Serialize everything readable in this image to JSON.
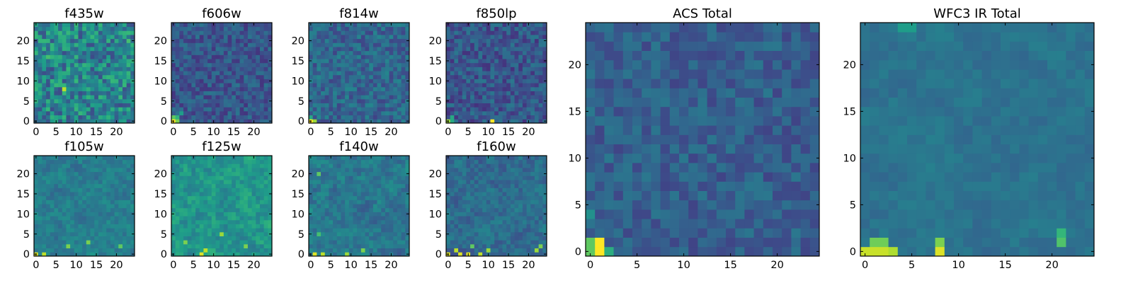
{
  "chart_data": [
    {
      "type": "heatmap",
      "title": "f435w",
      "size": 25,
      "xticks": [
        0,
        5,
        10,
        15,
        20
      ],
      "yticks": [
        0,
        5,
        10,
        15,
        20
      ],
      "colormap": "viridis",
      "seed": 11,
      "base": 0.45,
      "amp": 0.22,
      "bright": [
        [
          7,
          8,
          0.9
        ],
        [
          3,
          16,
          0.7
        ],
        [
          23,
          20,
          0.7
        ],
        [
          12,
          2,
          0.6
        ]
      ]
    },
    {
      "type": "heatmap",
      "title": "f606w",
      "size": 25,
      "xticks": [
        0,
        5,
        10,
        15,
        20
      ],
      "yticks": [
        0,
        5,
        10,
        15,
        20
      ],
      "colormap": "viridis",
      "seed": 23,
      "base": 0.27,
      "amp": 0.12,
      "bright": [
        [
          0,
          0,
          1.0
        ],
        [
          1,
          0,
          0.8
        ],
        [
          0,
          1,
          0.75
        ],
        [
          1,
          1,
          0.65
        ],
        [
          2,
          2,
          0.55
        ]
      ]
    },
    {
      "type": "heatmap",
      "title": "f814w",
      "size": 25,
      "xticks": [
        0,
        5,
        10,
        15,
        20
      ],
      "yticks": [
        0,
        5,
        10,
        15,
        20
      ],
      "colormap": "viridis",
      "seed": 37,
      "base": 0.33,
      "amp": 0.13,
      "bright": [
        [
          0,
          0,
          1.0
        ],
        [
          1,
          0,
          0.85
        ],
        [
          0,
          1,
          0.6
        ]
      ]
    },
    {
      "type": "heatmap",
      "title": "f850lp",
      "size": 25,
      "xticks": [
        0,
        5,
        10,
        15,
        20
      ],
      "yticks": [
        0,
        5,
        10,
        15,
        20
      ],
      "colormap": "viridis",
      "seed": 41,
      "base": 0.27,
      "amp": 0.13,
      "bright": [
        [
          0,
          0,
          0.85
        ],
        [
          1,
          0,
          0.6
        ],
        [
          11,
          0,
          1.0
        ],
        [
          1,
          1,
          0.6
        ]
      ]
    },
    {
      "type": "heatmap",
      "title": "ACS Total",
      "size": 25,
      "xticks": [
        0,
        5,
        10,
        15,
        20
      ],
      "yticks": [
        0,
        5,
        10,
        15,
        20
      ],
      "colormap": "viridis",
      "seed": 53,
      "base": 0.3,
      "amp": 0.1,
      "bright": [
        [
          1,
          0,
          1.0
        ],
        [
          1,
          1,
          1.0
        ],
        [
          0,
          0,
          0.75
        ],
        [
          0,
          1,
          0.75
        ],
        [
          2,
          0,
          0.62
        ],
        [
          0,
          4,
          0.5
        ]
      ]
    },
    {
      "type": "heatmap",
      "title": "f105w",
      "size": 25,
      "xticks": [
        0,
        5,
        10,
        15,
        20
      ],
      "yticks": [
        0,
        5,
        10,
        15,
        20
      ],
      "colormap": "viridis",
      "seed": 61,
      "base": 0.42,
      "amp": 0.14,
      "smooth": true,
      "bright": [
        [
          0,
          0,
          0.95
        ],
        [
          2,
          0,
          0.9
        ],
        [
          8,
          2,
          0.8
        ],
        [
          13,
          3,
          0.8
        ],
        [
          21,
          2,
          0.75
        ]
      ]
    },
    {
      "type": "heatmap",
      "title": "f125w",
      "size": 25,
      "xticks": [
        0,
        5,
        10,
        15,
        20
      ],
      "yticks": [
        0,
        5,
        10,
        15,
        20
      ],
      "colormap": "viridis",
      "seed": 73,
      "base": 0.52,
      "amp": 0.17,
      "smooth": true,
      "bright": [
        [
          7,
          0,
          0.95
        ],
        [
          8,
          1,
          0.9
        ],
        [
          12,
          5,
          0.85
        ],
        [
          3,
          3,
          0.8
        ],
        [
          18,
          2,
          0.8
        ]
      ]
    },
    {
      "type": "heatmap",
      "title": "f140w",
      "size": 25,
      "xticks": [
        0,
        5,
        10,
        15,
        20
      ],
      "yticks": [
        0,
        5,
        10,
        15,
        20
      ],
      "colormap": "viridis",
      "seed": 83,
      "base": 0.4,
      "amp": 0.16,
      "smooth": true,
      "bright": [
        [
          1,
          0,
          0.95
        ],
        [
          3,
          0,
          0.9
        ],
        [
          9,
          0,
          0.85
        ],
        [
          13,
          1,
          0.8
        ],
        [
          2,
          20,
          0.75
        ],
        [
          2,
          5,
          0.7
        ]
      ]
    },
    {
      "type": "heatmap",
      "title": "f160w",
      "size": 25,
      "xticks": [
        0,
        5,
        10,
        15,
        20
      ],
      "yticks": [
        0,
        5,
        10,
        15,
        20
      ],
      "colormap": "viridis",
      "seed": 97,
      "base": 0.35,
      "amp": 0.15,
      "smooth": true,
      "bright": [
        [
          0,
          0,
          0.95
        ],
        [
          3,
          0,
          0.95
        ],
        [
          5,
          0,
          0.95
        ],
        [
          8,
          0,
          0.9
        ],
        [
          10,
          1,
          0.85
        ],
        [
          2,
          1,
          0.9
        ],
        [
          22,
          1,
          0.85
        ],
        [
          23,
          2,
          0.8
        ],
        [
          6,
          2,
          0.75
        ]
      ]
    },
    {
      "type": "heatmap",
      "title": "WFC3 IR Total",
      "size": 25,
      "xticks": [
        0,
        5,
        10,
        15,
        20
      ],
      "yticks": [
        0,
        5,
        10,
        15,
        20
      ],
      "colormap": "viridis",
      "seed": 101,
      "base": 0.38,
      "amp": 0.08,
      "smooth": true,
      "bright": [
        [
          0,
          0,
          0.92
        ],
        [
          1,
          0,
          0.92
        ],
        [
          2,
          0,
          0.92
        ],
        [
          3,
          0,
          0.88
        ],
        [
          8,
          0,
          0.95
        ],
        [
          1,
          1,
          0.78
        ],
        [
          2,
          1,
          0.78
        ],
        [
          8,
          1,
          0.8
        ],
        [
          21,
          1,
          0.72
        ],
        [
          21,
          2,
          0.66
        ],
        [
          4,
          24,
          0.55
        ],
        [
          5,
          24,
          0.55
        ]
      ]
    }
  ]
}
